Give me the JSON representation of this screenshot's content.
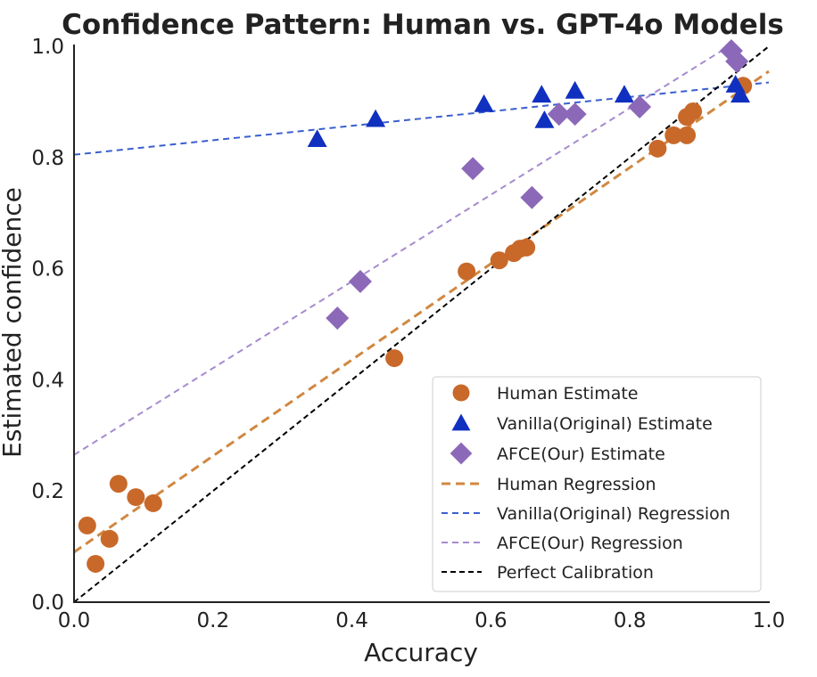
{
  "chart_data": {
    "type": "scatter",
    "title": "Confidence Pattern: Human vs. GPT-4o Models",
    "xlabel": "Accuracy",
    "ylabel": "Estimated confidence",
    "xlim": [
      0,
      1
    ],
    "ylim": [
      0,
      1
    ],
    "xticks": [
      "0.0",
      "0.2",
      "0.4",
      "0.6",
      "0.8",
      "1.0"
    ],
    "yticks": [
      "0.0",
      "0.2",
      "0.4",
      "0.6",
      "0.8",
      "1.0"
    ],
    "grid": false,
    "legend_position": "bottom-right",
    "series": [
      {
        "name": "Human Estimate",
        "marker": "circle",
        "color": "#c8692a",
        "points": [
          [
            0.019,
            0.138
          ],
          [
            0.031,
            0.069
          ],
          [
            0.051,
            0.114
          ],
          [
            0.064,
            0.213
          ],
          [
            0.089,
            0.189
          ],
          [
            0.114,
            0.178
          ],
          [
            0.461,
            0.439
          ],
          [
            0.565,
            0.595
          ],
          [
            0.612,
            0.615
          ],
          [
            0.633,
            0.628
          ],
          [
            0.642,
            0.636
          ],
          [
            0.651,
            0.638
          ],
          [
            0.84,
            0.816
          ],
          [
            0.863,
            0.84
          ],
          [
            0.882,
            0.84
          ],
          [
            0.882,
            0.873
          ],
          [
            0.891,
            0.883
          ],
          [
            0.963,
            0.929
          ]
        ]
      },
      {
        "name": "Vanilla(Original) Estimate",
        "marker": "triangle",
        "color": "#1030c0",
        "points": [
          [
            0.35,
            0.833
          ],
          [
            0.434,
            0.869
          ],
          [
            0.59,
            0.896
          ],
          [
            0.673,
            0.913
          ],
          [
            0.677,
            0.867
          ],
          [
            0.721,
            0.92
          ],
          [
            0.792,
            0.913
          ],
          [
            0.952,
            0.931
          ],
          [
            0.959,
            0.913
          ]
        ]
      },
      {
        "name": "AFCE(Our) Estimate",
        "marker": "diamond",
        "color": "#8c69b8",
        "points": [
          [
            0.379,
            0.511
          ],
          [
            0.412,
            0.577
          ],
          [
            0.574,
            0.78
          ],
          [
            0.659,
            0.728
          ],
          [
            0.698,
            0.878
          ],
          [
            0.721,
            0.878
          ],
          [
            0.814,
            0.891
          ],
          [
            0.946,
            0.992
          ],
          [
            0.954,
            0.973
          ]
        ]
      }
    ],
    "lines": [
      {
        "name": "Human Regression",
        "color": "#d08840",
        "intercept": 0.09,
        "slope": 0.865,
        "x_range": [
          0,
          1
        ],
        "width": 3,
        "dash": "10,6"
      },
      {
        "name": "Vanilla(Original) Regression",
        "color": "#3a5fcd",
        "intercept": 0.805,
        "slope": 0.13,
        "x_range": [
          0,
          1
        ],
        "width": 2,
        "dash": "7,5"
      },
      {
        "name": "AFCE(Our) Regression",
        "color": "#a58bcf",
        "intercept": 0.265,
        "slope": 0.78,
        "x_range": [
          0,
          0.95
        ],
        "width": 2,
        "dash": "7,5"
      },
      {
        "name": "Perfect Calibration",
        "color": "#000000",
        "intercept": 0,
        "slope": 1,
        "x_range": [
          0,
          1
        ],
        "width": 2,
        "dash": "6,4"
      }
    ]
  }
}
